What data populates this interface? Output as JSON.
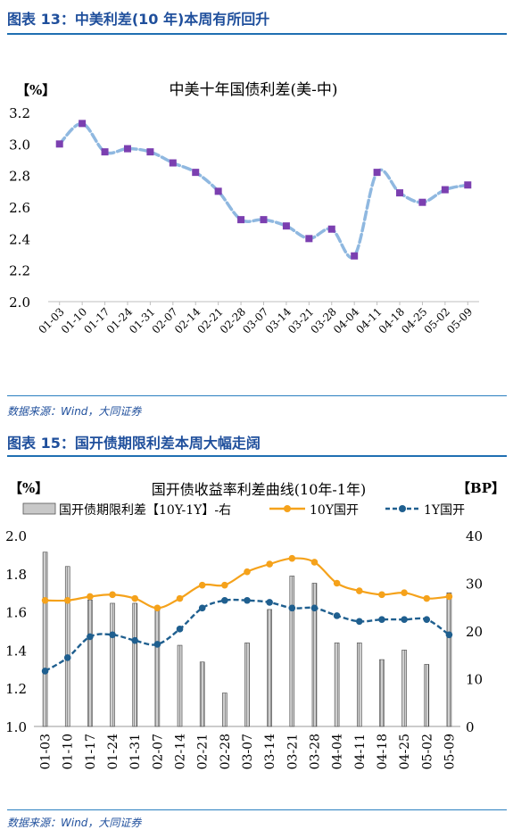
{
  "figure1": {
    "heading": "图表 13：中美利差(10 年)本周有所回升",
    "source": "数据来源：Wind，大同证券",
    "chart_data": {
      "type": "line",
      "title": "中美十年国债利差(美-中)",
      "unit_label": "【%】",
      "categories": [
        "01-03",
        "01-10",
        "01-17",
        "01-24",
        "01-31",
        "02-07",
        "02-14",
        "02-21",
        "02-28",
        "03-07",
        "03-14",
        "03-21",
        "03-28",
        "04-04",
        "04-11",
        "04-18",
        "04-25",
        "05-02",
        "05-09"
      ],
      "series": [
        {
          "name": "",
          "values": [
            3.0,
            3.13,
            2.95,
            2.97,
            2.95,
            2.88,
            2.82,
            2.7,
            2.52,
            2.52,
            2.48,
            2.4,
            2.46,
            2.29,
            2.82,
            2.69,
            2.63,
            2.71,
            2.74
          ]
        }
      ],
      "ylim": [
        2.0,
        3.2
      ],
      "yticks": [
        "2.0",
        "2.2",
        "2.4",
        "2.6",
        "2.8",
        "3.0",
        "3.2"
      ],
      "grid": false,
      "colors": {
        "line": "#8fb8e0",
        "marker": "#7b3fb0"
      }
    }
  },
  "figure2": {
    "heading": "图表 15：国开债期限利差本周大幅走阔",
    "source": "数据来源：Wind，大同证券",
    "chart_data": {
      "type": "bar",
      "title": "国开债收益率利差曲线(10年-1年)",
      "left_unit": "【%】",
      "right_unit": "【BP】",
      "categories": [
        "01-03",
        "01-10",
        "01-17",
        "01-24",
        "01-31",
        "02-07",
        "02-14",
        "02-21",
        "02-28",
        "03-07",
        "03-14",
        "03-21",
        "03-28",
        "04-04",
        "04-11",
        "04-18",
        "04-25",
        "05-02",
        "05-09"
      ],
      "series": [
        {
          "name": "国开债期限利差【10Y-1Y】-右",
          "axis": "right",
          "kind": "bar",
          "values": [
            36.5,
            33.5,
            26.5,
            25.8,
            25.8,
            24.8,
            17,
            13.5,
            7,
            17.5,
            24.5,
            31.5,
            30,
            17.5,
            17.5,
            14,
            16,
            13,
            28
          ]
        },
        {
          "name": "10Y国开",
          "axis": "left",
          "kind": "line",
          "values": [
            1.66,
            1.66,
            1.68,
            1.69,
            1.67,
            1.62,
            1.67,
            1.74,
            1.74,
            1.81,
            1.85,
            1.88,
            1.86,
            1.75,
            1.71,
            1.69,
            1.7,
            1.67,
            1.68
          ]
        },
        {
          "name": "1Y国开",
          "axis": "left",
          "kind": "line-dashed",
          "values": [
            1.29,
            1.36,
            1.47,
            1.48,
            1.45,
            1.43,
            1.51,
            1.62,
            1.66,
            1.66,
            1.65,
            1.62,
            1.62,
            1.58,
            1.55,
            1.56,
            1.56,
            1.56,
            1.48
          ]
        }
      ],
      "ylim_left": [
        1.0,
        2.0
      ],
      "yticks_left": [
        "1.0",
        "1.2",
        "1.4",
        "1.6",
        "1.8",
        "2.0"
      ],
      "ylim_right": [
        0,
        40
      ],
      "yticks_right": [
        "0",
        "10",
        "20",
        "30",
        "40"
      ],
      "grid": false,
      "legend_position": "top",
      "colors": {
        "bar": "#a8a8a8",
        "line10y": "#f5a21b",
        "line1y": "#1f5f8f"
      }
    }
  }
}
